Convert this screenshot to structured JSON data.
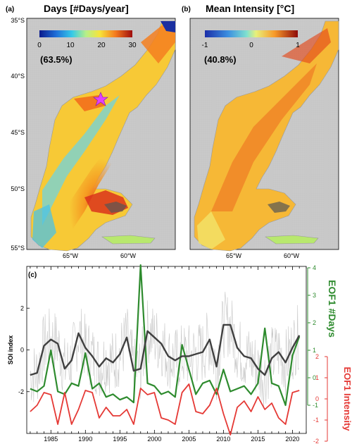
{
  "panel_a": {
    "label": "(a)",
    "title": "Days [#Days/year]",
    "percent": "(63.5%)",
    "colorbar_ticks": [
      "0",
      "10",
      "20",
      "30"
    ],
    "lat_ticks": [
      "35°S",
      "40°S",
      "45°S",
      "50°S",
      "55°S"
    ],
    "lon_ticks": [
      "65°W",
      "60°W"
    ]
  },
  "panel_b": {
    "label": "(b)",
    "title": "Mean Intensity [°C]",
    "percent": "(40.8%)",
    "colorbar_ticks": [
      "-1",
      "0",
      "1"
    ],
    "lon_ticks": [
      "65°W",
      "60°W"
    ]
  },
  "colors": {
    "days": "#2e8b2e",
    "intensity": "#e53935",
    "soi": "#404040",
    "soi_monthly": "#c8c8c8",
    "land": "#c9c9c9",
    "star": "#e040fb"
  },
  "chart_data": {
    "type": "line",
    "panel_label": "(c)",
    "x": [
      1982,
      1983,
      1984,
      1985,
      1986,
      1987,
      1988,
      1989,
      1990,
      1991,
      1992,
      1993,
      1994,
      1995,
      1996,
      1997,
      1998,
      1999,
      2000,
      2001,
      2002,
      2003,
      2004,
      2005,
      2006,
      2007,
      2008,
      2009,
      2010,
      2011,
      2012,
      2013,
      2014,
      2015,
      2016,
      2017,
      2018,
      2019,
      2020,
      2021
    ],
    "xticks": [
      1985,
      1990,
      1995,
      2000,
      2005,
      2010,
      2015,
      2020
    ],
    "series": [
      {
        "name": "EOF1 #Days",
        "axis": "right1",
        "values": [
          -0.4,
          -0.5,
          -0.3,
          1.0,
          -0.5,
          -0.6,
          -0.2,
          -0.3,
          0.9,
          -0.4,
          -0.2,
          -0.7,
          -0.6,
          -0.8,
          -0.7,
          -0.9,
          4.1,
          -0.2,
          -0.3,
          -0.6,
          -0.5,
          -0.7,
          1.2,
          0.3,
          -0.6,
          -0.2,
          -0.1,
          -0.6,
          0.3,
          -0.5,
          -0.4,
          -0.3,
          -0.6,
          -0.2,
          1.8,
          -0.2,
          -0.3,
          -1.0,
          0.8,
          1.5
        ]
      },
      {
        "name": "EOF1 Intensity",
        "axis": "right2",
        "values": [
          -0.6,
          -0.3,
          0.3,
          0.2,
          -1.2,
          0.3,
          -1.2,
          -0.5,
          0.4,
          0.3,
          -0.9,
          -0.4,
          -0.8,
          -0.8,
          -0.5,
          -1.2,
          0.5,
          0.2,
          0.3,
          -0.9,
          -1.0,
          -1.2,
          0.3,
          0.7,
          -0.6,
          -0.7,
          -0.3,
          0.5,
          -0.7,
          -1.7,
          -0.4,
          -0.1,
          -0.6,
          0.1,
          -0.5,
          -0.2,
          -0.9,
          -1.2,
          0.3,
          0.4
        ]
      },
      {
        "name": "SOI",
        "axis": "left",
        "values": [
          -1.2,
          -1.1,
          0.2,
          0.5,
          0.3,
          -0.9,
          -0.5,
          0.8,
          0.1,
          -0.3,
          -0.8,
          -0.4,
          -0.6,
          -0.2,
          0.6,
          -1.0,
          -0.9,
          0.9,
          0.6,
          0.3,
          -0.3,
          -0.5,
          -0.3,
          -0.3,
          -0.2,
          -0.1,
          0.5,
          -0.8,
          1.2,
          1.2,
          0.1,
          -0.3,
          -0.4,
          -0.9,
          -1.2,
          -0.4,
          -0.1,
          -0.6,
          0.1,
          0.7
        ]
      }
    ],
    "left_axis": {
      "label": "SOI index",
      "ylim": [
        -4.0,
        4.0
      ],
      "ticks": [
        -2,
        0,
        2
      ]
    },
    "right1_axis": {
      "label": "EOF1 #Days",
      "ylim": [
        -1,
        4
      ],
      "ticks": [
        -1,
        0,
        1,
        2,
        3,
        4
      ]
    },
    "right2_axis": {
      "label": "EOF1 Intensity",
      "ylim": [
        -2,
        2
      ],
      "ticks": [
        -2,
        -1,
        0,
        1,
        2
      ]
    },
    "xlim": [
      1981.5,
      2022
    ]
  }
}
